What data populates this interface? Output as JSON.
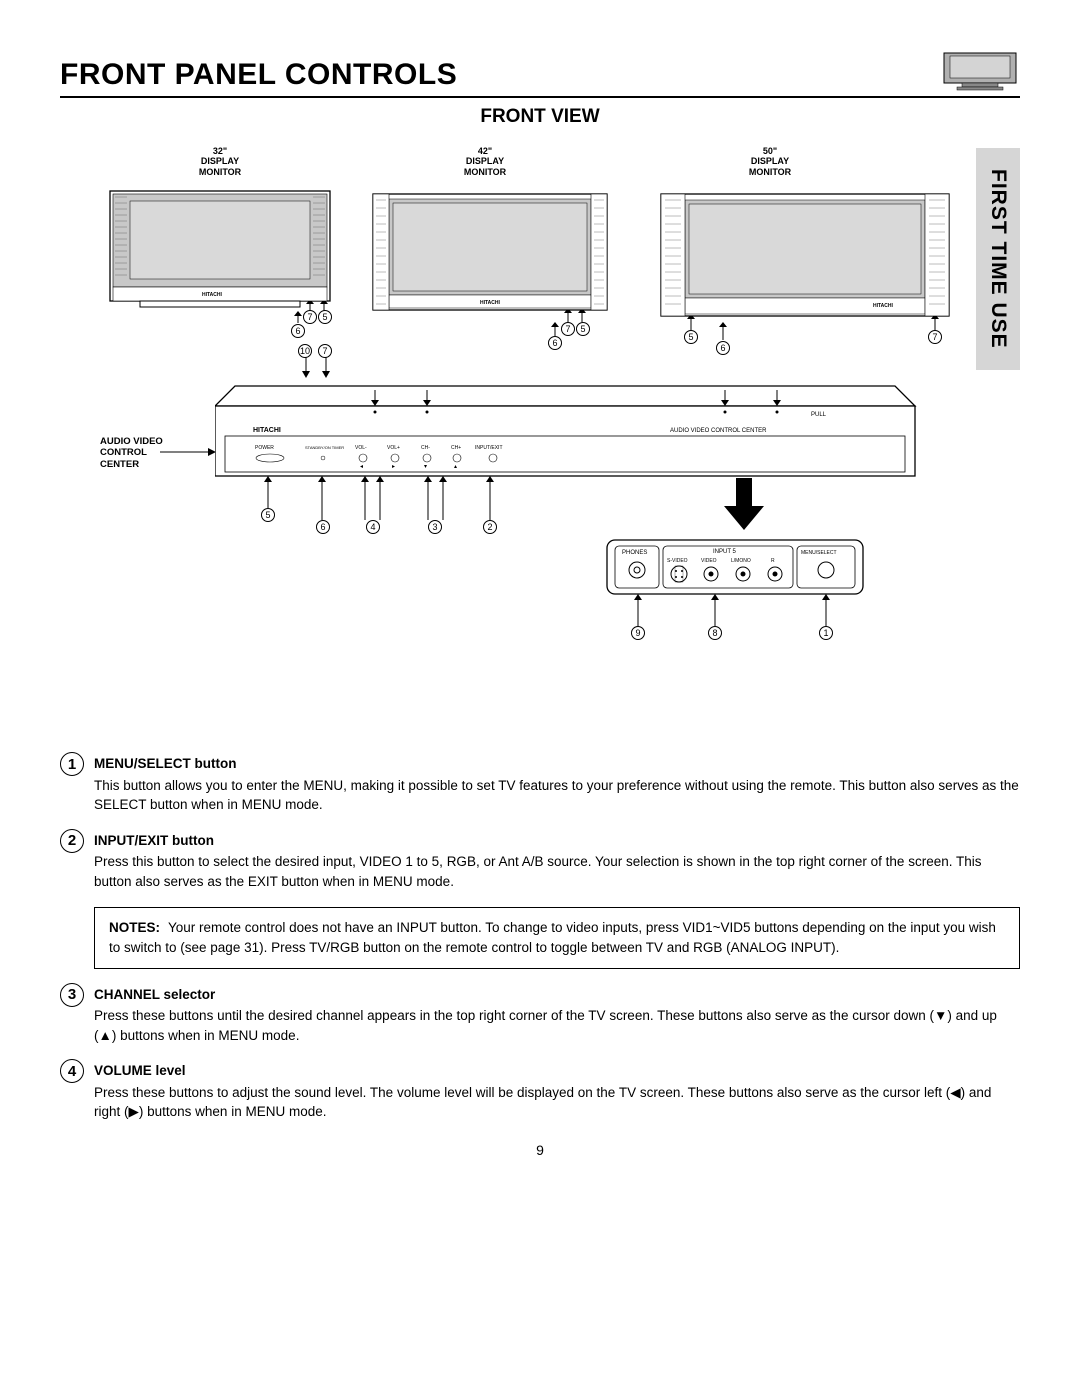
{
  "header": {
    "title": "FRONT PANEL CONTROLS",
    "subtitle": "FRONT VIEW"
  },
  "side_tab": "FIRST TIME USE",
  "monitors": [
    {
      "label": "32\"\nDISPLAY\nMONITOR"
    },
    {
      "label": "42\"\nDISPLAY\nMONITOR"
    },
    {
      "label": "50\"\nDISPLAY\nMONITOR"
    }
  ],
  "avc_label": "AUDIO VIDEO\nCONTROL\nCENTER",
  "avc_inner_label": "AUDIO VIDEO CONTROL CENTER",
  "brand": "HITACHI",
  "pull_label": "PULL",
  "button_labels": [
    "POWER",
    "STANDBY/ON/ON TIMER",
    "VOL-",
    "VOL+",
    "CH-",
    "CH+",
    "INPUT/EXIT"
  ],
  "detail_labels": {
    "phones": "PHONES",
    "input5": "INPUT 5",
    "svideo": "S-VIDEO",
    "video": "VIDEO",
    "lmono": "L/MONO",
    "r": "R",
    "menu": "MENU/SELECT"
  },
  "callouts_monitor1": [
    "7",
    "5",
    "6"
  ],
  "callouts_monitor2": [
    "7",
    "5",
    "6"
  ],
  "callouts_monitor3": [
    "5",
    "6",
    "7"
  ],
  "callouts_avc_top": [
    "10",
    "7"
  ],
  "callouts_avc_bottom": [
    "5",
    "6",
    "4",
    "3",
    "2"
  ],
  "callouts_detail": [
    "9",
    "8",
    "1"
  ],
  "descriptions": [
    {
      "num": "1",
      "title": "MENU/SELECT button",
      "text": "This button allows you to enter the MENU, making it possible to set TV features to your preference without using the remote.  This button also serves as the SELECT button when in MENU mode."
    },
    {
      "num": "2",
      "title": "INPUT/EXIT button",
      "text": "Press this button to select the desired input, VIDEO 1 to 5, RGB, or Ant A/B source.  Your selection is shown in the top right corner of the screen.  This button also serves as the EXIT button when in MENU mode."
    }
  ],
  "notes": {
    "label": "NOTES:",
    "text": "Your remote control does not have an INPUT button.  To change to video inputs, press VID1~VID5 buttons depending on the input you wish to switch to (see page 31).  Press TV/RGB button on the remote control to toggle between TV and RGB (ANALOG INPUT)."
  },
  "descriptions_after": [
    {
      "num": "3",
      "title": "CHANNEL selector",
      "text": "Press these buttons until the desired channel appears in the top right corner of the TV screen.  These buttons also serve as the cursor down (▼) and up (▲) buttons when in MENU mode."
    },
    {
      "num": "4",
      "title": "VOLUME level",
      "text": "Press these buttons to adjust the sound level.  The volume level will be displayed on the TV screen.  These buttons also serve as the cursor left (◀) and right (▶) buttons when in MENU mode."
    }
  ],
  "page_number": "9",
  "colors": {
    "screen_fill": "#c8c8c8",
    "bezel_mid": "#b0b0b0",
    "bezel_dark": "#888888",
    "tab_bg": "#d6d6d6"
  }
}
